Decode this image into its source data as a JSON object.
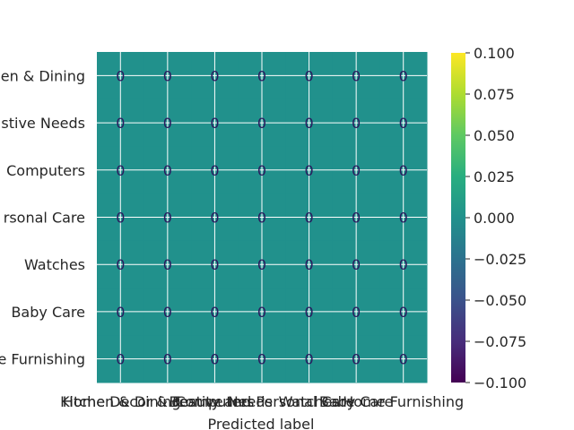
{
  "chart_data": {
    "type": "heatmap",
    "title": "",
    "xlabel": "Predicted label",
    "ylabel": "",
    "x_categories": [
      "Kitchen & Dining",
      "Home Decor & Festive Needs",
      "Computers",
      "Beauty and Personal Care",
      "Watches",
      "Baby Care",
      "Home Furnishing"
    ],
    "y_categories": [
      "Kitchen & Dining",
      "Home Decor & Festive Needs",
      "Computers",
      "Beauty and Personal Care",
      "Watches",
      "Baby Care",
      "Home Furnishing"
    ],
    "y_tick_labels_visible": [
      "en & Dining",
      "stive Needs",
      "Computers",
      "rsonal Care",
      "Watches",
      "Baby Care",
      "e Furnishing"
    ],
    "values": [
      [
        0,
        0,
        0,
        0,
        0,
        0,
        0
      ],
      [
        0,
        0,
        0,
        0,
        0,
        0,
        0
      ],
      [
        0,
        0,
        0,
        0,
        0,
        0,
        0
      ],
      [
        0,
        0,
        0,
        0,
        0,
        0,
        0
      ],
      [
        0,
        0,
        0,
        0,
        0,
        0,
        0
      ],
      [
        0,
        0,
        0,
        0,
        0,
        0,
        0
      ],
      [
        0,
        0,
        0,
        0,
        0,
        0,
        0
      ]
    ],
    "colorbar": {
      "colormap": "viridis",
      "range": [
        -0.1,
        0.1
      ],
      "ticks": [
        "0.100",
        "0.075",
        "0.050",
        "0.025",
        "0.000",
        "−0.025",
        "−0.050",
        "−0.075",
        "−0.100"
      ]
    },
    "cell_color": "#21918c",
    "grid": true
  }
}
